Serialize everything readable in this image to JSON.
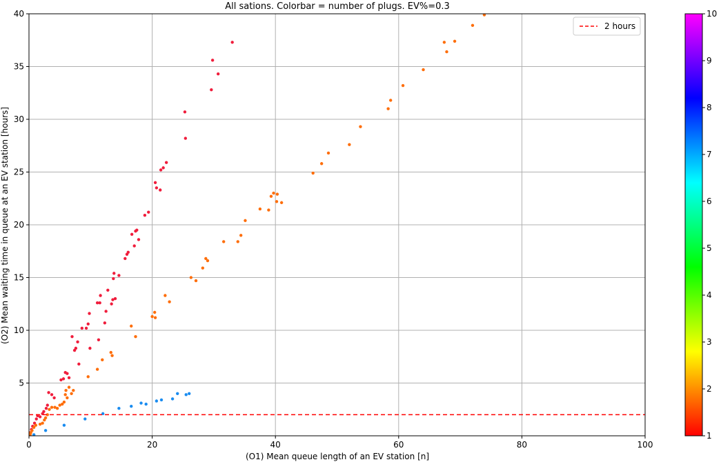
{
  "chart_data": {
    "type": "scatter",
    "title": "All sations. Colorbar = number of plugs. EV%=0.3",
    "xlabel": "(O1) Mean queue length of an EV station [n]",
    "ylabel": "(O2) Mean waiting time in queue at an EV station [hours]",
    "xlim": [
      0,
      100
    ],
    "ylim": [
      0,
      40
    ],
    "xticks": [
      0,
      20,
      40,
      60,
      80,
      100
    ],
    "yticks": [
      5,
      10,
      15,
      20,
      25,
      30,
      35,
      40
    ],
    "grid": true,
    "legend": {
      "position": "top-right",
      "entries": [
        {
          "label": "2 hours",
          "style": "dashed",
          "color": "#ff0000"
        }
      ]
    },
    "reference_line": {
      "label": "2 hours",
      "y": 2,
      "color": "#ff0000",
      "style": "dashed"
    },
    "colorbar": {
      "label": "number of plugs",
      "min": 1,
      "max": 10,
      "ticks": [
        1,
        2,
        3,
        4,
        5,
        6,
        7,
        8,
        9,
        10
      ],
      "colormap": [
        "#ff0000",
        "#ff8000",
        "#ffff00",
        "#80ff00",
        "#00ff00",
        "#00ff80",
        "#00ffff",
        "#0080ff",
        "#0000ff",
        "#8000ff",
        "#ff00ff"
      ]
    },
    "series": [
      {
        "plugs": 1,
        "color": "#f01d3c",
        "points": [
          [
            0.2,
            0.3
          ],
          [
            0.4,
            0.6
          ],
          [
            0.6,
            0.9
          ],
          [
            0.9,
            1.2
          ],
          [
            1.2,
            1.6
          ],
          [
            1.4,
            1.9
          ],
          [
            1.8,
            1.8
          ],
          [
            2.2,
            2.1
          ],
          [
            2.4,
            2.3
          ],
          [
            2.8,
            2.6
          ],
          [
            3.0,
            2.9
          ],
          [
            3.2,
            4.1
          ],
          [
            3.7,
            3.9
          ],
          [
            4.1,
            3.6
          ],
          [
            5.2,
            5.3
          ],
          [
            5.6,
            5.4
          ],
          [
            5.9,
            6.0
          ],
          [
            6.2,
            5.9
          ],
          [
            6.5,
            5.5
          ],
          [
            7.0,
            9.4
          ],
          [
            7.4,
            8.1
          ],
          [
            7.6,
            8.3
          ],
          [
            7.9,
            8.9
          ],
          [
            8.1,
            6.8
          ],
          [
            8.6,
            10.2
          ],
          [
            9.3,
            10.2
          ],
          [
            9.6,
            10.6
          ],
          [
            9.8,
            11.6
          ],
          [
            9.9,
            8.3
          ],
          [
            11.1,
            12.6
          ],
          [
            11.3,
            9.1
          ],
          [
            11.5,
            12.6
          ],
          [
            11.6,
            13.3
          ],
          [
            12.3,
            10.7
          ],
          [
            12.5,
            11.8
          ],
          [
            12.8,
            13.8
          ],
          [
            13.4,
            12.5
          ],
          [
            13.6,
            12.9
          ],
          [
            13.7,
            14.9
          ],
          [
            13.8,
            15.4
          ],
          [
            14.0,
            13.0
          ],
          [
            14.6,
            15.2
          ],
          [
            15.6,
            16.8
          ],
          [
            15.9,
            17.2
          ],
          [
            16.1,
            17.4
          ],
          [
            16.7,
            19.1
          ],
          [
            17.1,
            18.0
          ],
          [
            17.3,
            19.4
          ],
          [
            17.5,
            19.5
          ],
          [
            17.8,
            18.6
          ],
          [
            18.8,
            20.9
          ],
          [
            19.4,
            21.2
          ],
          [
            20.5,
            24.0
          ],
          [
            20.7,
            23.5
          ],
          [
            21.3,
            23.3
          ],
          [
            21.4,
            25.2
          ],
          [
            21.8,
            25.4
          ],
          [
            22.3,
            25.9
          ],
          [
            25.3,
            30.7
          ],
          [
            25.4,
            28.2
          ],
          [
            29.6,
            32.8
          ],
          [
            29.8,
            35.6
          ],
          [
            30.7,
            34.3
          ],
          [
            33.0,
            37.3
          ]
        ]
      },
      {
        "plugs": 2,
        "color": "#fe6e0a",
        "points": [
          [
            0.2,
            0.1
          ],
          [
            0.3,
            0.3
          ],
          [
            0.5,
            0.5
          ],
          [
            0.8,
            0.8
          ],
          [
            1.1,
            1.0
          ],
          [
            1.8,
            1.1
          ],
          [
            2.2,
            1.2
          ],
          [
            2.5,
            1.5
          ],
          [
            2.7,
            1.7
          ],
          [
            3.0,
            2.0
          ],
          [
            3.3,
            2.5
          ],
          [
            3.7,
            2.7
          ],
          [
            4.2,
            2.7
          ],
          [
            4.6,
            2.6
          ],
          [
            5.0,
            2.9
          ],
          [
            5.4,
            3.0
          ],
          [
            5.7,
            3.2
          ],
          [
            5.9,
            3.9
          ],
          [
            6.0,
            4.3
          ],
          [
            6.2,
            3.6
          ],
          [
            6.5,
            4.6
          ],
          [
            6.9,
            4.0
          ],
          [
            7.2,
            4.3
          ],
          [
            9.6,
            5.6
          ],
          [
            11.1,
            6.3
          ],
          [
            11.9,
            7.2
          ],
          [
            13.3,
            7.9
          ],
          [
            13.5,
            7.6
          ],
          [
            16.6,
            10.4
          ],
          [
            17.3,
            9.4
          ],
          [
            20.0,
            11.3
          ],
          [
            20.4,
            11.7
          ],
          [
            20.5,
            11.2
          ],
          [
            22.1,
            13.3
          ],
          [
            22.8,
            12.7
          ],
          [
            26.3,
            15.0
          ],
          [
            27.1,
            14.7
          ],
          [
            28.2,
            15.9
          ],
          [
            28.7,
            16.8
          ],
          [
            29.0,
            16.6
          ],
          [
            31.6,
            18.4
          ],
          [
            33.9,
            18.4
          ],
          [
            34.4,
            19.0
          ],
          [
            35.1,
            20.4
          ],
          [
            37.5,
            21.5
          ],
          [
            38.9,
            21.4
          ],
          [
            39.3,
            22.7
          ],
          [
            39.7,
            23.0
          ],
          [
            40.2,
            22.2
          ],
          [
            40.3,
            22.9
          ],
          [
            41.0,
            22.1
          ],
          [
            46.1,
            24.9
          ],
          [
            47.5,
            25.8
          ],
          [
            48.6,
            26.8
          ],
          [
            52.0,
            27.6
          ],
          [
            53.8,
            29.3
          ],
          [
            58.3,
            31.0
          ],
          [
            58.7,
            31.8
          ],
          [
            60.7,
            33.2
          ],
          [
            64.0,
            34.7
          ],
          [
            67.4,
            37.3
          ],
          [
            67.8,
            36.4
          ],
          [
            69.1,
            37.4
          ],
          [
            72.0,
            38.9
          ],
          [
            73.9,
            39.9
          ]
        ]
      },
      {
        "plugs": 8,
        "color": "#1a8cf0",
        "points": [
          [
            0.8,
            0.1
          ],
          [
            2.7,
            0.5
          ],
          [
            5.7,
            1.0
          ],
          [
            9.1,
            1.6
          ],
          [
            12.0,
            2.1
          ],
          [
            14.6,
            2.6
          ],
          [
            16.6,
            2.8
          ],
          [
            18.2,
            3.1
          ],
          [
            19.0,
            3.0
          ],
          [
            20.7,
            3.3
          ],
          [
            21.5,
            3.4
          ],
          [
            23.3,
            3.5
          ],
          [
            24.1,
            4.0
          ],
          [
            25.5,
            3.9
          ],
          [
            26.0,
            4.0
          ]
        ]
      }
    ]
  }
}
